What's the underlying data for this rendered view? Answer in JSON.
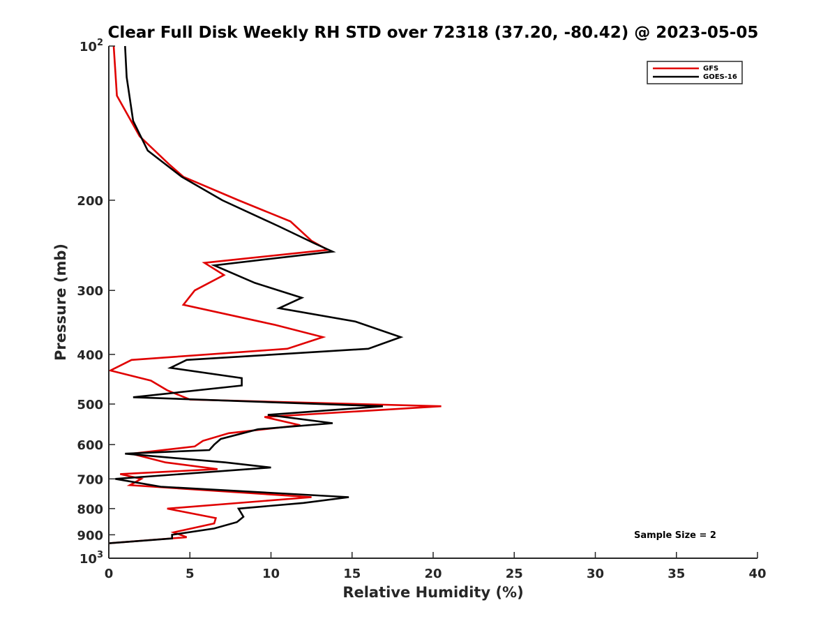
{
  "chart_data": {
    "type": "line",
    "title": "Clear Full Disk Weekly RH STD over 72318 (37.20, -80.42) @ 2023-05-05",
    "xlabel": "Relative Humidity (%)",
    "ylabel": "Pressure (mb)",
    "xlim": [
      0,
      40
    ],
    "ylim": [
      100,
      1000
    ],
    "y_scale": "log",
    "y_reversed": true,
    "x_ticks": [
      "0",
      "5",
      "10",
      "15",
      "20",
      "25",
      "30",
      "35",
      "40"
    ],
    "y_ticks": [
      {
        "value": 100,
        "base": "10",
        "exp": "2"
      },
      {
        "value": 200,
        "label": "200"
      },
      {
        "value": 300,
        "label": "300"
      },
      {
        "value": 400,
        "label": "400"
      },
      {
        "value": 500,
        "label": "500"
      },
      {
        "value": 600,
        "label": "600"
      },
      {
        "value": 700,
        "label": "700"
      },
      {
        "value": 800,
        "label": "800"
      },
      {
        "value": 900,
        "label": "900"
      },
      {
        "value": 1000,
        "base": "10",
        "exp": "3"
      }
    ],
    "grid": false,
    "legend_position": "top-right",
    "annotation": "Sample Size = 2",
    "series": [
      {
        "name": "GFS",
        "color": "#e00000",
        "points": [
          [
            0.3,
            100
          ],
          [
            0.5,
            125
          ],
          [
            1.9,
            150
          ],
          [
            3.7,
            170
          ],
          [
            4.6,
            180
          ],
          [
            8.0,
            200
          ],
          [
            11.2,
            220
          ],
          [
            12.5,
            240
          ],
          [
            13.5,
            250
          ],
          [
            5.9,
            265
          ],
          [
            7.1,
            280
          ],
          [
            5.3,
            300
          ],
          [
            4.6,
            320
          ],
          [
            10.2,
            350
          ],
          [
            13.2,
            370
          ],
          [
            11.0,
            390
          ],
          [
            1.4,
            410
          ],
          [
            0.1,
            430
          ],
          [
            2.6,
            450
          ],
          [
            3.6,
            470
          ],
          [
            5.0,
            490
          ],
          [
            20.5,
            505
          ],
          [
            9.6,
            530
          ],
          [
            11.8,
            550
          ],
          [
            7.4,
            570
          ],
          [
            5.8,
            590
          ],
          [
            5.3,
            605
          ],
          [
            1.4,
            625
          ],
          [
            3.5,
            650
          ],
          [
            6.7,
            670
          ],
          [
            0.7,
            685
          ],
          [
            2.0,
            700
          ],
          [
            1.3,
            720
          ],
          [
            12.5,
            760
          ],
          [
            3.6,
            800
          ],
          [
            6.6,
            835
          ],
          [
            6.5,
            855
          ],
          [
            4.0,
            890
          ],
          [
            4.8,
            910
          ],
          [
            0.0,
            935
          ]
        ]
      },
      {
        "name": "GOES-16",
        "color": "#000000",
        "points": [
          [
            1.0,
            100
          ],
          [
            1.1,
            115
          ],
          [
            1.5,
            140
          ],
          [
            2.4,
            160
          ],
          [
            4.5,
            180
          ],
          [
            7.0,
            200
          ],
          [
            10.5,
            225
          ],
          [
            12.7,
            243
          ],
          [
            13.8,
            252
          ],
          [
            6.5,
            268
          ],
          [
            9.0,
            290
          ],
          [
            11.9,
            310
          ],
          [
            10.5,
            325
          ],
          [
            15.2,
            345
          ],
          [
            18.0,
            370
          ],
          [
            16.0,
            390
          ],
          [
            4.8,
            410
          ],
          [
            3.8,
            425
          ],
          [
            8.2,
            445
          ],
          [
            8.2,
            460
          ],
          [
            1.5,
            485
          ],
          [
            16.9,
            505
          ],
          [
            9.8,
            525
          ],
          [
            13.8,
            545
          ],
          [
            9.2,
            560
          ],
          [
            6.9,
            585
          ],
          [
            6.5,
            600
          ],
          [
            6.2,
            615
          ],
          [
            1.0,
            625
          ],
          [
            7.2,
            650
          ],
          [
            10.0,
            665
          ],
          [
            0.4,
            700
          ],
          [
            3.2,
            725
          ],
          [
            14.8,
            760
          ],
          [
            12.0,
            780
          ],
          [
            8.0,
            800
          ],
          [
            8.3,
            830
          ],
          [
            7.9,
            850
          ],
          [
            6.5,
            875
          ],
          [
            3.9,
            900
          ],
          [
            3.9,
            915
          ],
          [
            0.0,
            935
          ]
        ]
      }
    ]
  }
}
